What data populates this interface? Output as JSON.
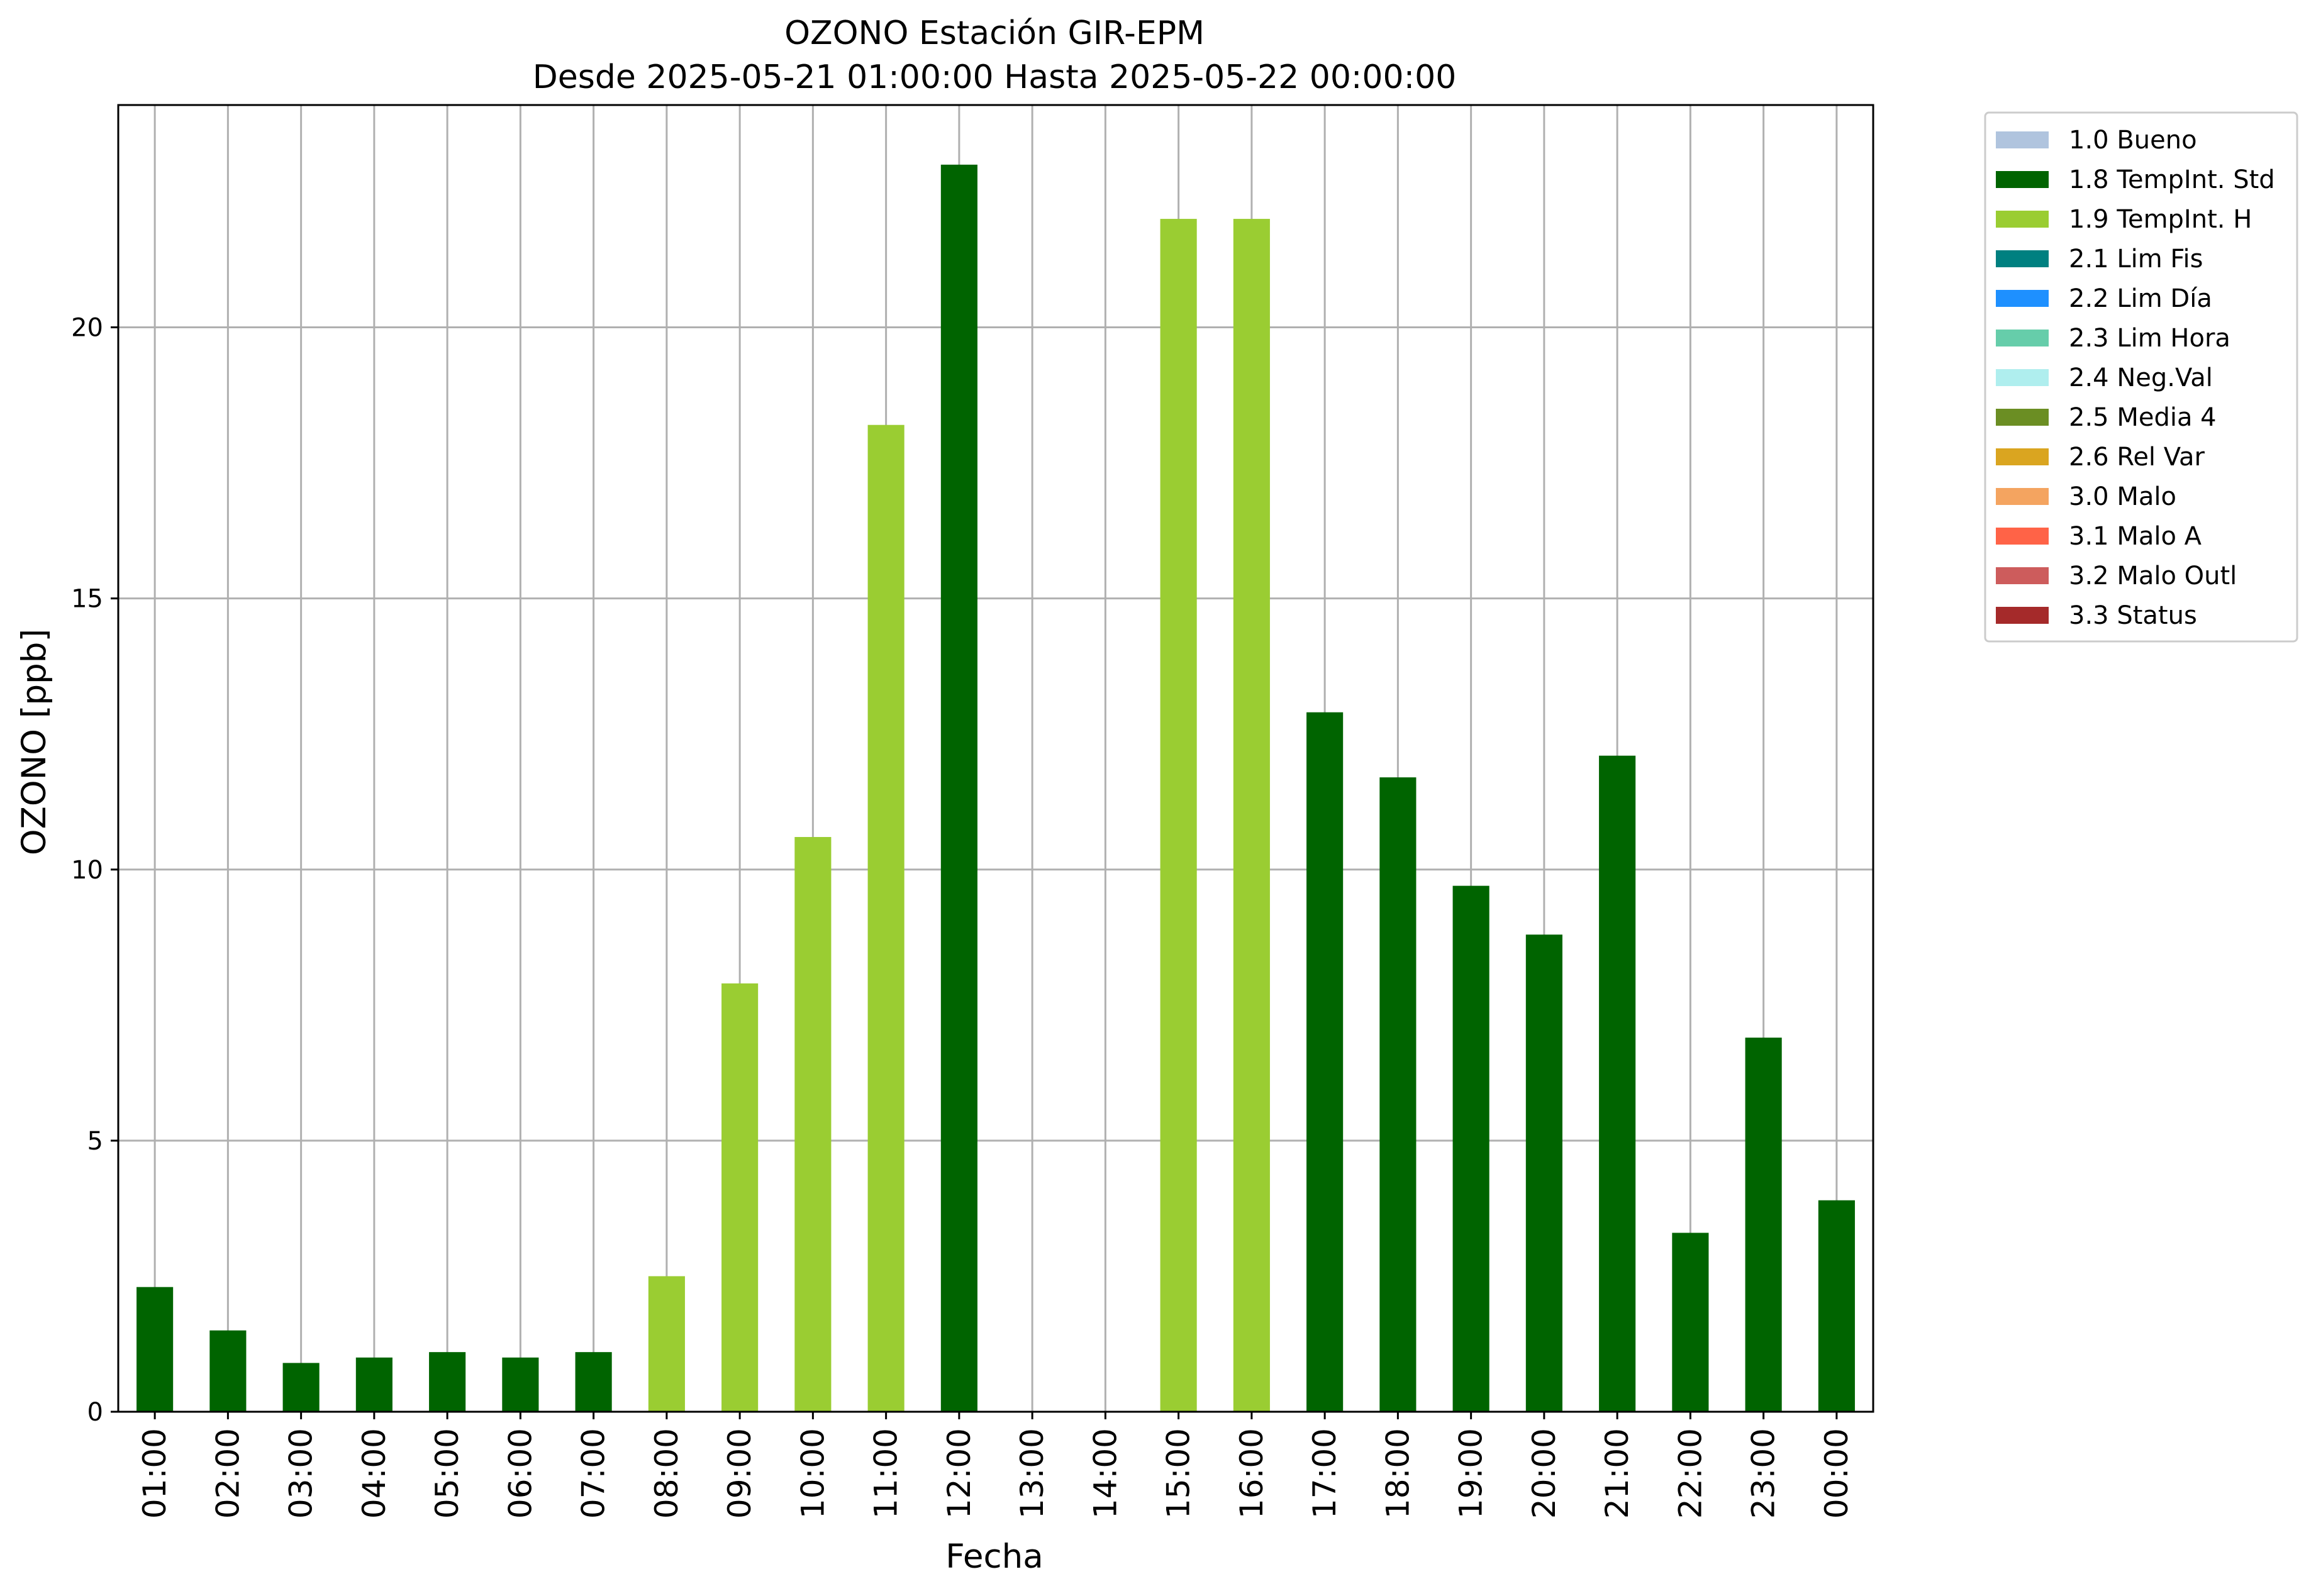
{
  "chart_data": {
    "type": "bar",
    "title": "OZONO Estación GIR-EPM",
    "subtitle": "Desde 2025-05-21 01:00:00 Hasta 2025-05-22 00:00:00",
    "xlabel": "Fecha",
    "ylabel": "OZONO [ppb]",
    "ylim": [
      0,
      24.1
    ],
    "yticks": [
      0,
      5,
      10,
      15,
      20
    ],
    "grid": true,
    "legend_position": "outside-right-top",
    "categories": [
      "01:00",
      "02:00",
      "03:00",
      "04:00",
      "05:00",
      "06:00",
      "07:00",
      "08:00",
      "09:00",
      "10:00",
      "11:00",
      "12:00",
      "13:00",
      "14:00",
      "15:00",
      "16:00",
      "17:00",
      "18:00",
      "19:00",
      "20:00",
      "21:00",
      "22:00",
      "23:00",
      "00:00"
    ],
    "values": [
      2.3,
      1.5,
      0.9,
      1.0,
      1.1,
      1.0,
      1.1,
      2.5,
      7.9,
      10.6,
      18.2,
      23.0,
      null,
      null,
      22.0,
      22.0,
      12.9,
      11.7,
      9.7,
      8.8,
      12.1,
      3.3,
      6.9,
      3.9
    ],
    "flags": [
      "1.8",
      "1.8",
      "1.8",
      "1.8",
      "1.8",
      "1.8",
      "1.8",
      "1.9",
      "1.9",
      "1.9",
      "1.9",
      "1.8",
      null,
      null,
      "1.9",
      "1.9",
      "1.8",
      "1.8",
      "1.8",
      "1.8",
      "1.8",
      "1.8",
      "1.8",
      "1.8"
    ],
    "legend": [
      {
        "code": "1.0",
        "label": "1.0 Bueno",
        "color": "#b0c4de"
      },
      {
        "code": "1.8",
        "label": "1.8 TempInt. Std",
        "color": "#006400"
      },
      {
        "code": "1.9",
        "label": "1.9 TempInt. H",
        "color": "#9acd32"
      },
      {
        "code": "2.1",
        "label": "2.1 Lim Fis",
        "color": "#008080"
      },
      {
        "code": "2.2",
        "label": "2.2 Lim Día",
        "color": "#1e90ff"
      },
      {
        "code": "2.3",
        "label": "2.3 Lim Hora",
        "color": "#66cdaa"
      },
      {
        "code": "2.4",
        "label": "2.4 Neg.Val",
        "color": "#afeeee"
      },
      {
        "code": "2.5",
        "label": "2.5 Media 4",
        "color": "#6b8e23"
      },
      {
        "code": "2.6",
        "label": "2.6 Rel Var",
        "color": "#daa520"
      },
      {
        "code": "3.0",
        "label": "3.0 Malo",
        "color": "#f4a460"
      },
      {
        "code": "3.1",
        "label": "3.1 Malo A",
        "color": "#ff6347"
      },
      {
        "code": "3.2",
        "label": "3.2 Malo Outl",
        "color": "#cd5c5c"
      },
      {
        "code": "3.3",
        "label": "3.3 Status",
        "color": "#a52a2a"
      }
    ]
  }
}
